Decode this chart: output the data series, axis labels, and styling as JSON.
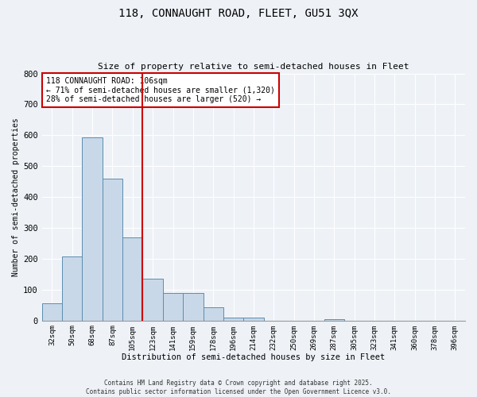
{
  "title_line1": "118, CONNAUGHT ROAD, FLEET, GU51 3QX",
  "title_line2": "Size of property relative to semi-detached houses in Fleet",
  "xlabel": "Distribution of semi-detached houses by size in Fleet",
  "ylabel": "Number of semi-detached properties",
  "categories": [
    "32sqm",
    "50sqm",
    "68sqm",
    "87sqm",
    "105sqm",
    "123sqm",
    "141sqm",
    "159sqm",
    "178sqm",
    "196sqm",
    "214sqm",
    "232sqm",
    "250sqm",
    "269sqm",
    "287sqm",
    "305sqm",
    "323sqm",
    "341sqm",
    "360sqm",
    "378sqm",
    "396sqm"
  ],
  "values": [
    55,
    207,
    592,
    460,
    270,
    135,
    90,
    90,
    42,
    10,
    10,
    0,
    0,
    0,
    5,
    0,
    0,
    0,
    0,
    0,
    0
  ],
  "bar_color": "#c8d8e8",
  "bar_edge_color": "#5b8db0",
  "highlight_line_color": "#cc0000",
  "annotation_box_color": "#cc0000",
  "annotation_text_line1": "118 CONNAUGHT ROAD: 106sqm",
  "annotation_text_line2": "← 71% of semi-detached houses are smaller (1,320)",
  "annotation_text_line3": "28% of semi-detached houses are larger (520) →",
  "ylim": [
    0,
    800
  ],
  "yticks": [
    0,
    100,
    200,
    300,
    400,
    500,
    600,
    700,
    800
  ],
  "footer_line1": "Contains HM Land Registry data © Crown copyright and database right 2025.",
  "footer_line2": "Contains public sector information licensed under the Open Government Licence v3.0.",
  "bg_color": "#eef2f7",
  "plot_bg_color": "#eef2f7",
  "grid_color": "#ffffff"
}
